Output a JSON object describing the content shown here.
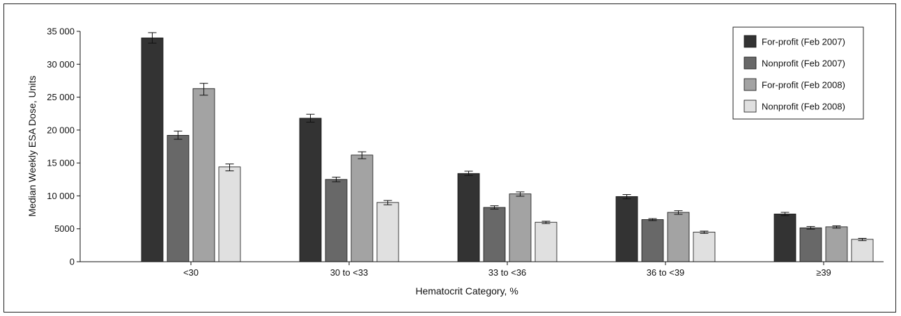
{
  "chart_data": {
    "type": "bar",
    "title": "",
    "xlabel": "Hematocrit Category, %",
    "ylabel": "Median Weekly ESA Dose, Units",
    "ylim": [
      0,
      35000
    ],
    "yticks": [
      0,
      5000,
      10000,
      15000,
      20000,
      25000,
      30000,
      35000
    ],
    "ytick_labels": [
      "0",
      "5000",
      "10 000",
      "15 000",
      "20 000",
      "25 000",
      "30 000",
      "35 000"
    ],
    "categories": [
      "<30",
      "30 to <33",
      "33 to <36",
      "36 to <39",
      "≥39"
    ],
    "legend_position": "top-right",
    "grid": false,
    "series": [
      {
        "name": "For-profit (Feb 2007)",
        "color": "#333333",
        "values": [
          34000,
          21800,
          13400,
          9900,
          7250
        ],
        "err_low": [
          33200,
          21200,
          13100,
          9550,
          7000
        ],
        "err_high": [
          34800,
          22400,
          13750,
          10200,
          7500
        ]
      },
      {
        "name": "Nonprofit (Feb 2007)",
        "color": "#686868",
        "values": [
          19200,
          12500,
          8250,
          6400,
          5150
        ],
        "err_low": [
          18600,
          12150,
          8000,
          6250,
          4950
        ],
        "err_high": [
          19850,
          12850,
          8500,
          6550,
          5350
        ]
      },
      {
        "name": "For-profit (Feb 2008)",
        "color": "#a3a3a3",
        "values": [
          26300,
          16200,
          10300,
          7500,
          5300
        ],
        "err_low": [
          25300,
          15650,
          9950,
          7200,
          5100
        ],
        "err_high": [
          27100,
          16700,
          10600,
          7750,
          5450
        ]
      },
      {
        "name": "Nonprofit (Feb 2008)",
        "color": "#e0e0e0",
        "values": [
          14400,
          9000,
          6000,
          4500,
          3400
        ],
        "err_low": [
          13800,
          8650,
          5800,
          4300,
          3200
        ],
        "err_high": [
          14850,
          9300,
          6150,
          4650,
          3550
        ]
      }
    ]
  }
}
